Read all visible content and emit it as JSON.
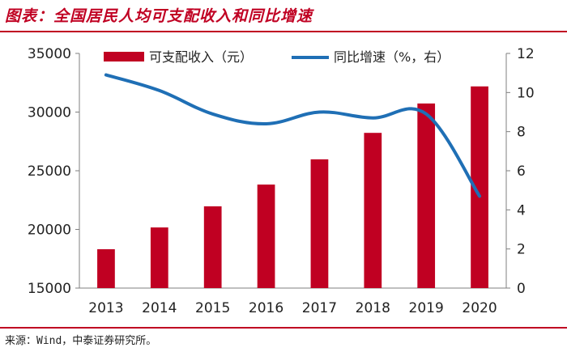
{
  "header": {
    "title": "图表：全国居民人均可支配收入和同比增速"
  },
  "footer": {
    "source": "来源：Wind，中泰证券研究所。"
  },
  "colors": {
    "bar": "#c00022",
    "line": "#1f6fb5",
    "accent": "#c00022"
  },
  "chart_data": {
    "type": "bar",
    "categories": [
      "2013",
      "2014",
      "2015",
      "2016",
      "2017",
      "2018",
      "2019",
      "2020"
    ],
    "series": [
      {
        "name": "可支配收入（元）",
        "type": "bar",
        "axis": "left",
        "values": [
          18311,
          20167,
          21966,
          23821,
          25974,
          28228,
          30733,
          32189
        ]
      },
      {
        "name": "同比增速（%，右）",
        "type": "line",
        "axis": "right",
        "values": [
          10.9,
          10.1,
          8.9,
          8.4,
          9.0,
          8.7,
          8.9,
          4.7
        ]
      }
    ],
    "y_left": {
      "ylim": [
        15000,
        35000
      ],
      "ticks": [
        "15000",
        "20000",
        "25000",
        "30000",
        "35000"
      ]
    },
    "y_right": {
      "ylim": [
        0,
        12
      ],
      "ticks": [
        "0",
        "2",
        "4",
        "6",
        "8",
        "10",
        "12"
      ]
    },
    "grid": false,
    "legend": "top"
  }
}
